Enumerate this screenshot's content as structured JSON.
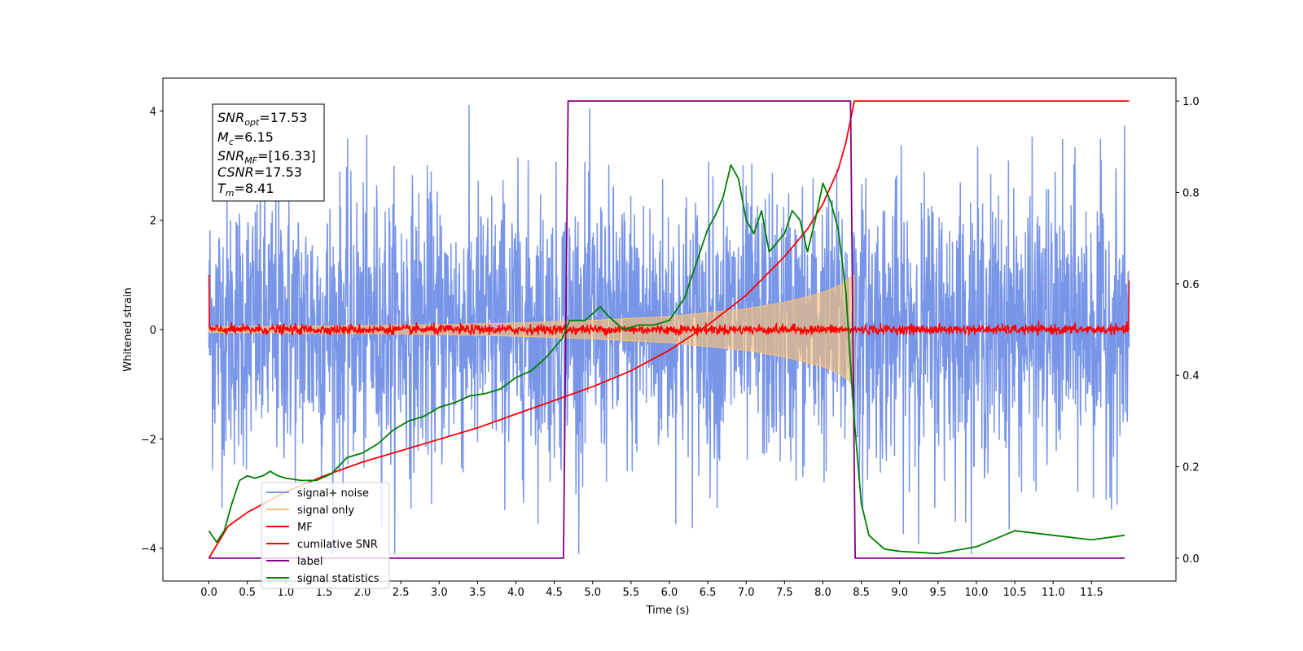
{
  "chart_data": {
    "type": "line",
    "title": "",
    "xlabel": "Time (s)",
    "ylabel": "Whitened strain",
    "xlim": [
      -0.6,
      12.6
    ],
    "ylim": [
      -4.6,
      4.6
    ],
    "y2lim": [
      -0.05,
      1.05
    ],
    "xticks": [
      "0.0",
      "0.5",
      "1.0",
      "1.5",
      "2.0",
      "2.5",
      "3.0",
      "3.5",
      "4.0",
      "4.5",
      "5.0",
      "5.5",
      "6.0",
      "6.5",
      "7.0",
      "7.5",
      "8.0",
      "8.5",
      "9.0",
      "9.5",
      "10.0",
      "10.5",
      "11.0",
      "11.5"
    ],
    "yticks": [
      "−4",
      "−2",
      "0",
      "2",
      "4"
    ],
    "y2ticks": [
      "0.0",
      "0.2",
      "0.4",
      "0.6",
      "0.8",
      "1.0"
    ],
    "grid": false,
    "legend": {
      "placement": "lower-left",
      "entries": [
        {
          "name": "signal+ noise",
          "color": "#7895e8"
        },
        {
          "name": "signal only",
          "color": "#f7c27a"
        },
        {
          "name": "MF",
          "color": "#ff0000"
        },
        {
          "name": "cumilative SNR",
          "color": "#ff0000"
        },
        {
          "name": "label",
          "color": "#800080"
        },
        {
          "name": "signal statistics",
          "color": "#008000"
        }
      ]
    },
    "annotation": {
      "lines": [
        {
          "name": "SNR",
          "sub": "opt",
          "value": "=17.53"
        },
        {
          "name": "M",
          "sub": "c",
          "value": "=6.15"
        },
        {
          "name": "SNR",
          "sub": "MF",
          "value": "=[16.33]"
        },
        {
          "name": "CSNR",
          "sub": "",
          "value": "=17.53"
        },
        {
          "name": "T",
          "sub": "m",
          "value": "=8.41"
        }
      ]
    },
    "series": [
      {
        "name": "signal+ noise",
        "axis": "left",
        "color": "#7895e8",
        "x_range": [
          0.0,
          11.99
        ],
        "noise_band": [
          -2.6,
          2.7
        ],
        "peak_range": [
          -4.1,
          4.1
        ]
      },
      {
        "name": "signal only",
        "axis": "left",
        "color": "#f7c27a",
        "envelope": {
          "x": [
            0.0,
            1.0,
            2.0,
            3.0,
            4.0,
            5.0,
            6.0,
            7.0,
            7.5,
            8.0,
            8.2,
            8.3,
            8.41
          ],
          "amp": [
            0.05,
            0.06,
            0.07,
            0.09,
            0.12,
            0.17,
            0.24,
            0.38,
            0.5,
            0.68,
            0.8,
            0.9,
            1.0
          ]
        }
      },
      {
        "name": "MF",
        "axis": "left",
        "color": "#ff0000",
        "x_range": [
          0.0,
          11.99
        ],
        "level": 0.0,
        "noise_band": [
          -0.1,
          0.2
        ],
        "edge_values": [
          1.0,
          0.9
        ]
      },
      {
        "name": "cumilative SNR",
        "axis": "right",
        "color": "#ff0000",
        "x": [
          0.0,
          0.25,
          0.5,
          1.0,
          1.5,
          2.0,
          2.5,
          3.0,
          3.5,
          4.0,
          4.5,
          5.0,
          5.5,
          6.0,
          6.5,
          7.0,
          7.5,
          7.8,
          8.0,
          8.2,
          8.3,
          8.41,
          9.0,
          10.0,
          11.0,
          11.99
        ],
        "y": [
          0.0,
          0.07,
          0.1,
          0.145,
          0.18,
          0.21,
          0.235,
          0.26,
          0.285,
          0.315,
          0.345,
          0.375,
          0.41,
          0.455,
          0.51,
          0.575,
          0.66,
          0.72,
          0.775,
          0.85,
          0.91,
          1.0,
          1.0,
          1.0,
          1.0,
          1.0
        ]
      },
      {
        "name": "label",
        "axis": "right",
        "color": "#800080",
        "x": [
          0.0,
          4.62,
          4.68,
          8.36,
          8.42,
          11.93
        ],
        "y": [
          0.0,
          0.0,
          1.0,
          1.0,
          0.0,
          0.0
        ]
      },
      {
        "name": "signal statistics",
        "axis": "right",
        "color": "#008000",
        "x": [
          0.0,
          0.1,
          0.2,
          0.3,
          0.4,
          0.5,
          0.6,
          0.7,
          0.8,
          0.9,
          1.0,
          1.2,
          1.4,
          1.6,
          1.8,
          2.0,
          2.2,
          2.4,
          2.6,
          2.8,
          3.0,
          3.2,
          3.4,
          3.6,
          3.8,
          4.0,
          4.2,
          4.4,
          4.6,
          4.7,
          4.8,
          4.9,
          5.0,
          5.1,
          5.2,
          5.4,
          5.6,
          5.8,
          6.0,
          6.2,
          6.4,
          6.5,
          6.6,
          6.7,
          6.8,
          6.9,
          7.0,
          7.1,
          7.2,
          7.3,
          7.4,
          7.5,
          7.6,
          7.7,
          7.8,
          7.9,
          8.0,
          8.1,
          8.2,
          8.3,
          8.4,
          8.5,
          8.6,
          8.8,
          9.0,
          9.5,
          10.0,
          10.5,
          11.0,
          11.5,
          11.93
        ],
        "y": [
          0.06,
          0.035,
          0.06,
          0.12,
          0.17,
          0.18,
          0.175,
          0.18,
          0.19,
          0.18,
          0.175,
          0.17,
          0.17,
          0.185,
          0.22,
          0.23,
          0.25,
          0.28,
          0.3,
          0.31,
          0.33,
          0.34,
          0.355,
          0.36,
          0.37,
          0.395,
          0.41,
          0.44,
          0.48,
          0.52,
          0.52,
          0.52,
          0.535,
          0.55,
          0.53,
          0.5,
          0.51,
          0.51,
          0.52,
          0.57,
          0.67,
          0.72,
          0.75,
          0.79,
          0.86,
          0.83,
          0.74,
          0.71,
          0.76,
          0.67,
          0.69,
          0.71,
          0.76,
          0.74,
          0.67,
          0.74,
          0.82,
          0.78,
          0.72,
          0.58,
          0.32,
          0.12,
          0.05,
          0.02,
          0.015,
          0.01,
          0.025,
          0.06,
          0.05,
          0.04,
          0.05
        ]
      }
    ]
  }
}
